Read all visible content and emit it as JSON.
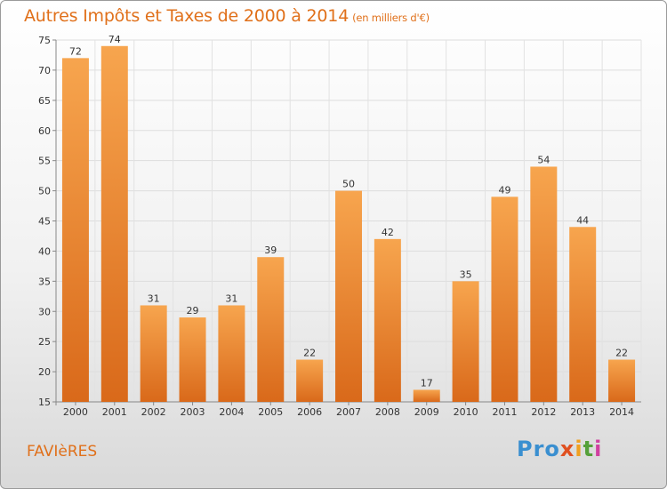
{
  "title": "Autres Impôts et Taxes de 2000 à 2014",
  "title_unit": "(en milliers d'€)",
  "commune": "FAVIèRES",
  "logo": [
    "Pro",
    "x",
    "i",
    "t",
    "i"
  ],
  "colors": {
    "bar_light": "#f7a54e",
    "bar_dark": "#d9691a",
    "accent": "#e0701a"
  },
  "chart_data": {
    "type": "bar",
    "categories": [
      "2000",
      "2001",
      "2002",
      "2003",
      "2004",
      "2005",
      "2006",
      "2007",
      "2008",
      "2009",
      "2010",
      "2011",
      "2012",
      "2013",
      "2014"
    ],
    "values": [
      72,
      74,
      31,
      29,
      31,
      39,
      22,
      50,
      42,
      17,
      35,
      49,
      54,
      44,
      22
    ],
    "ylim": [
      15,
      75
    ],
    "yticks": [
      15,
      20,
      25,
      30,
      35,
      40,
      45,
      50,
      55,
      60,
      65,
      70,
      75
    ],
    "grid": true,
    "xlabel": "",
    "ylabel": ""
  }
}
